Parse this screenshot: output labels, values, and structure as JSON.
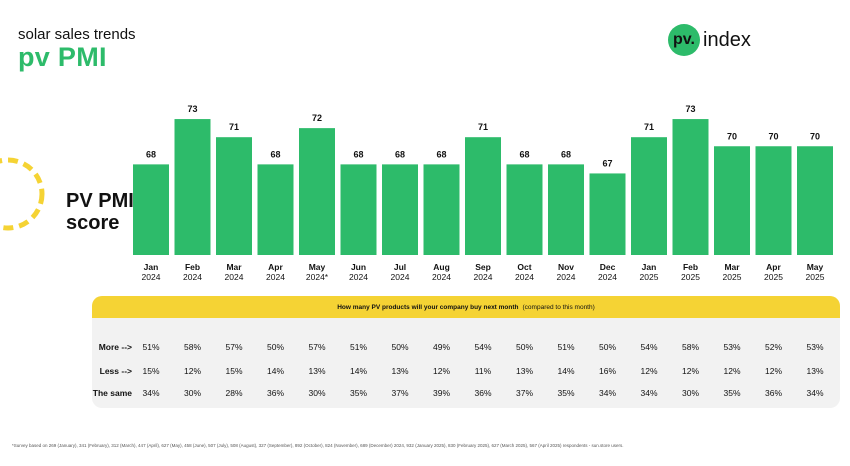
{
  "header": {
    "subtitle": "solar sales trends",
    "title": "pv PMI"
  },
  "logo": {
    "mark": "pv.",
    "text": "index"
  },
  "y_label_line1": "PV PMI",
  "y_label_line2": "score",
  "colors": {
    "bar": "#2dbb6a",
    "accent_yellow": "#f5d334",
    "survey_bg": "#f2f2f2"
  },
  "chart_data": {
    "type": "bar",
    "title": "",
    "ylabel": "PV PMI score",
    "categories": [
      {
        "month": "Jan",
        "year": "2024"
      },
      {
        "month": "Feb",
        "year": "2024"
      },
      {
        "month": "Mar",
        "year": "2024"
      },
      {
        "month": "Apr",
        "year": "2024"
      },
      {
        "month": "May",
        "year": "2024*"
      },
      {
        "month": "Jun",
        "year": "2024"
      },
      {
        "month": "Jul",
        "year": "2024"
      },
      {
        "month": "Aug",
        "year": "2024"
      },
      {
        "month": "Sep",
        "year": "2024"
      },
      {
        "month": "Oct",
        "year": "2024"
      },
      {
        "month": "Nov",
        "year": "2024"
      },
      {
        "month": "Dec",
        "year": "2024"
      },
      {
        "month": "Jan",
        "year": "2025"
      },
      {
        "month": "Feb",
        "year": "2025"
      },
      {
        "month": "Mar",
        "year": "2025"
      },
      {
        "month": "Apr",
        "year": "2025"
      },
      {
        "month": "May",
        "year": "2025"
      }
    ],
    "values": [
      68,
      73,
      71,
      68,
      72,
      68,
      68,
      68,
      71,
      68,
      68,
      67,
      71,
      73,
      70,
      70,
      70
    ],
    "value_labels": [
      "68",
      "73",
      "71",
      "68",
      "72",
      "68",
      "68",
      "68",
      "71",
      "68",
      "68",
      "67",
      "71",
      "73",
      "70",
      "70",
      "70"
    ],
    "ylim": [
      58,
      74
    ],
    "grid": false,
    "legend": "none"
  },
  "survey": {
    "question": "How many PV products will your company buy next month",
    "note": "(compared to this month)",
    "rows": [
      {
        "label": "More -->",
        "values": [
          "51%",
          "58%",
          "57%",
          "50%",
          "57%",
          "51%",
          "50%",
          "49%",
          "54%",
          "50%",
          "51%",
          "50%",
          "54%",
          "58%",
          "53%",
          "52%",
          "53%"
        ]
      },
      {
        "label": "Less -->",
        "values": [
          "15%",
          "12%",
          "15%",
          "14%",
          "13%",
          "14%",
          "13%",
          "12%",
          "11%",
          "13%",
          "14%",
          "16%",
          "12%",
          "12%",
          "12%",
          "12%",
          "13%"
        ]
      },
      {
        "label": "The same",
        "values": [
          "34%",
          "30%",
          "28%",
          "36%",
          "30%",
          "35%",
          "37%",
          "39%",
          "36%",
          "37%",
          "35%",
          "34%",
          "34%",
          "30%",
          "35%",
          "36%",
          "34%"
        ]
      }
    ]
  },
  "footnote": "*Survey based on 269 (January), 341 (February), 312 (March), 447 (April), 627 (May), 458 (June), 507 (July), 508 (August), 327 (September), 892 (October), 824 (November), 689 (December) 2024, 932 (January 2025), 830 (February 2025), 627 (March 2025), 567 (April 2025) respondents - sun.store users."
}
